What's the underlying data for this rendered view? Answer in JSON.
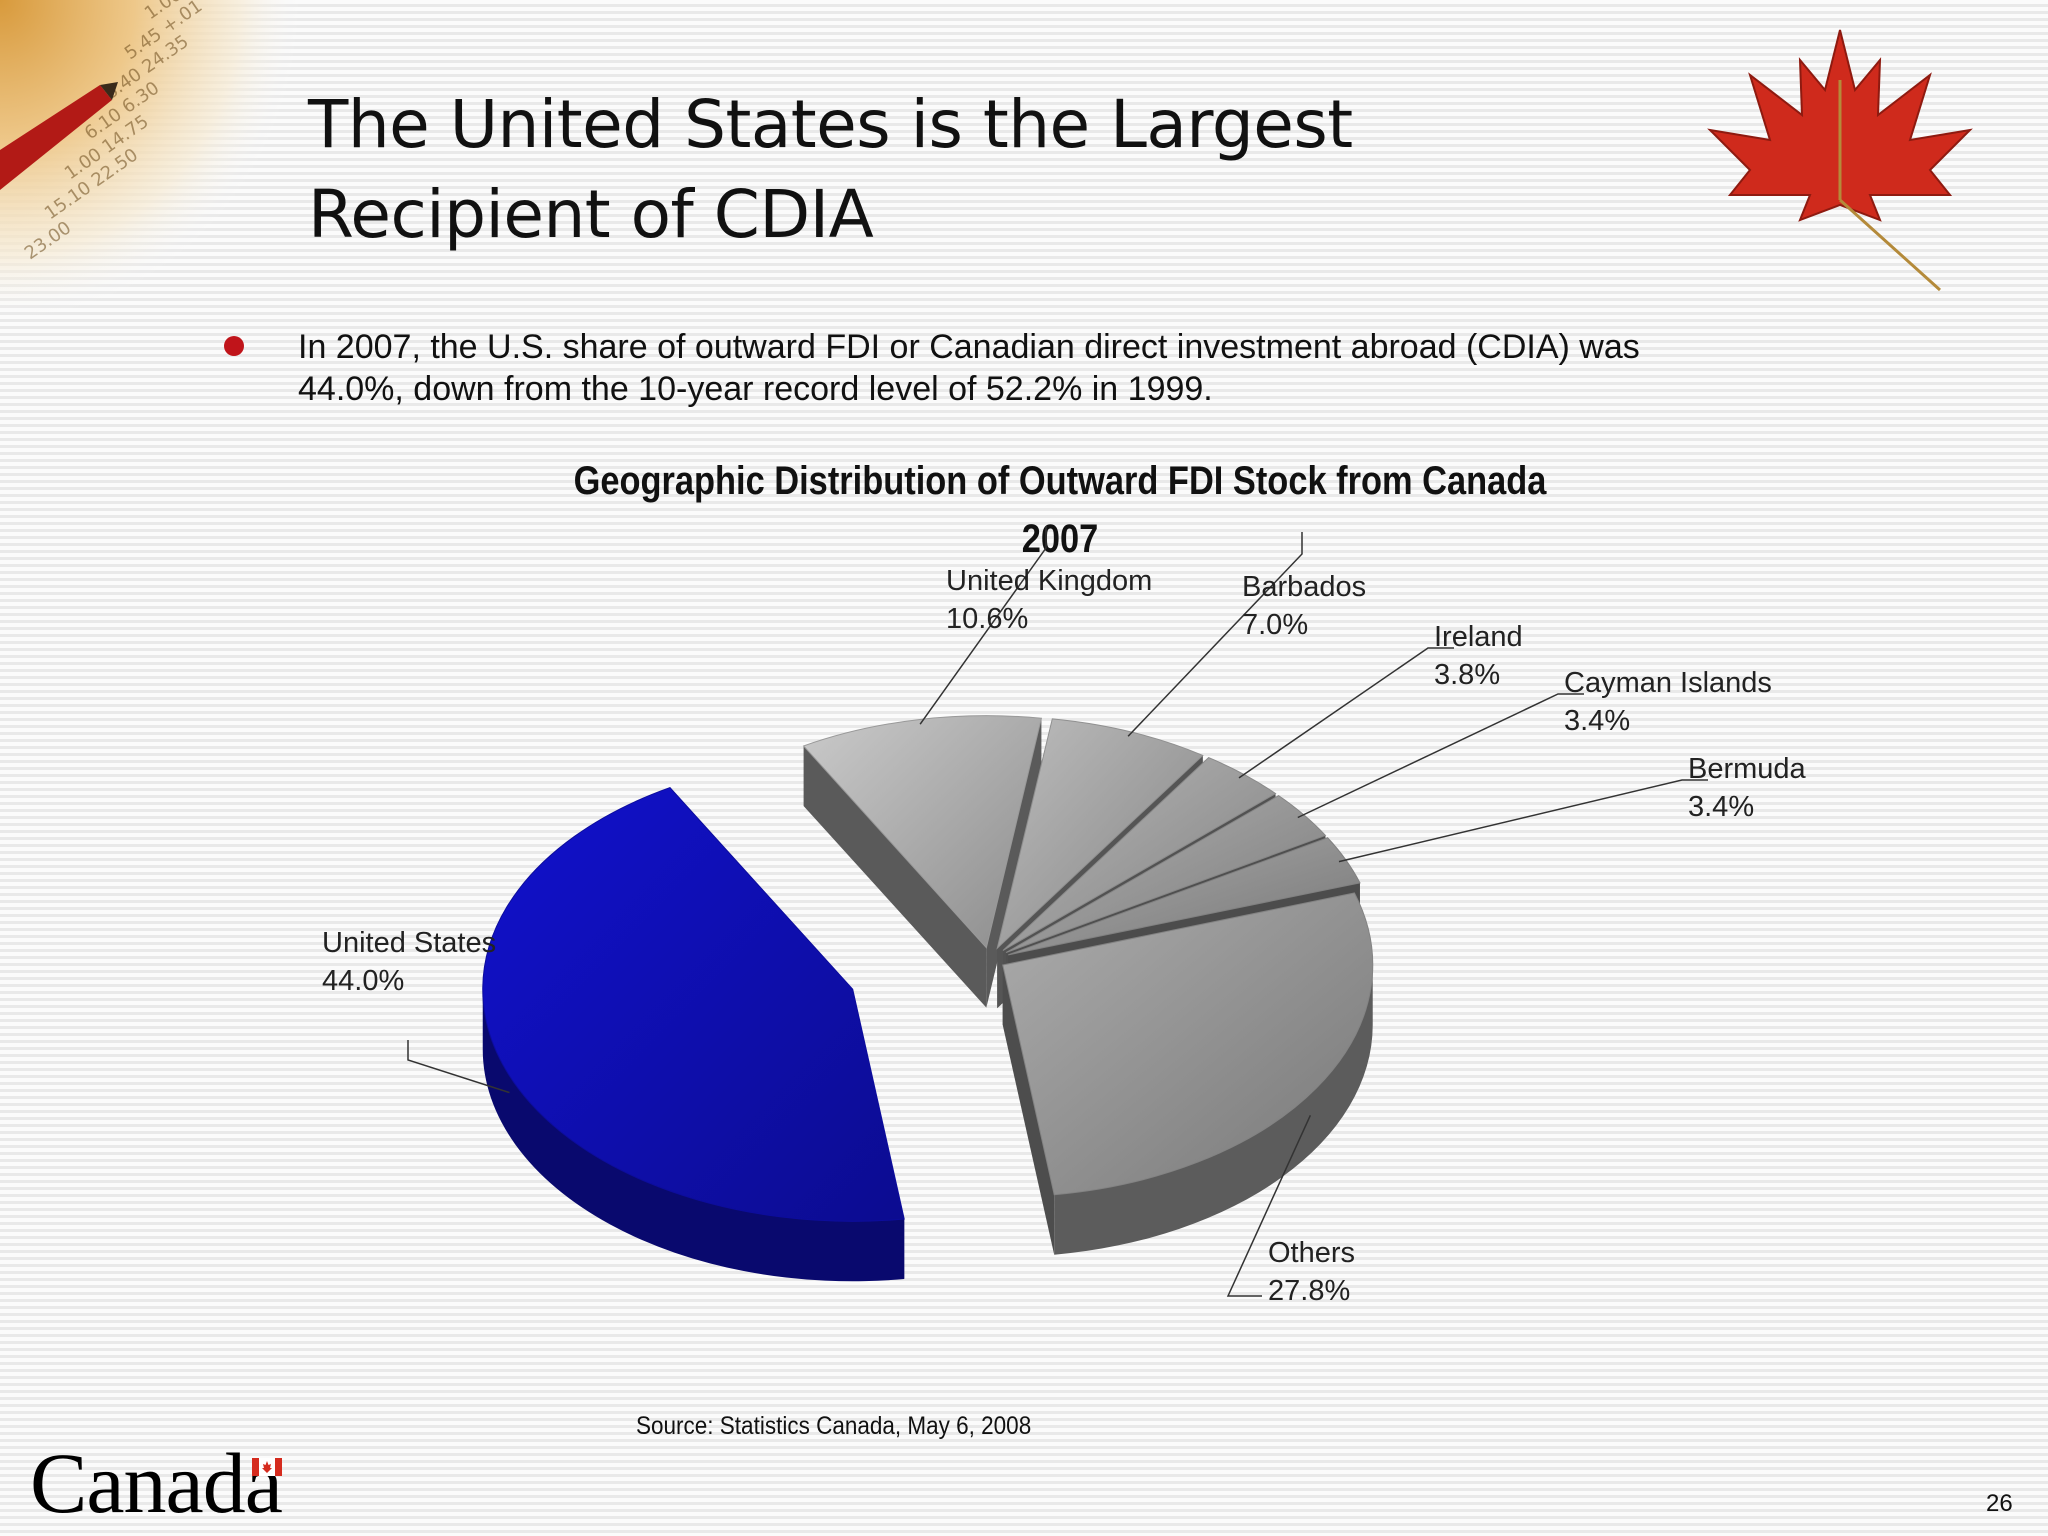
{
  "slide": {
    "title_line1": "The United States is the Largest",
    "title_line2": "Recipient of CDIA",
    "bullet_line1": "In 2007, the U.S. share of outward FDI or Canadian direct investment abroad (CDIA) was",
    "bullet_line2": "44.0%, down from the 10-year record level of 52.2% in 1999.",
    "source": "Source: Statistics Canada, May 6, 2008",
    "wordmark": "Canadä",
    "page_number": "26",
    "bullet_color": "#c0141a",
    "icons": [
      "pen-financial-figures-image",
      "maple-leaf-icon",
      "canada-flag-icon"
    ]
  },
  "chart_data": {
    "type": "pie",
    "title": "Geographic Distribution of Outward FDI Stock from Canada",
    "subtitle": "2007",
    "slices": [
      {
        "name": "United States",
        "value": 44.0,
        "label": "44.0%",
        "color": "#0f0fb8"
      },
      {
        "name": "United Kingdom",
        "value": 10.6,
        "label": "10.6%",
        "color": "#b4b4b4"
      },
      {
        "name": "Barbados",
        "value": 7.0,
        "label": "7.0%",
        "color": "#a9a9a9"
      },
      {
        "name": "Ireland",
        "value": 3.8,
        "label": "3.8%",
        "color": "#a4a4a4"
      },
      {
        "name": "Cayman Islands",
        "value": 3.4,
        "label": "3.4%",
        "color": "#9e9e9e"
      },
      {
        "name": "Bermuda",
        "value": 3.4,
        "label": "3.4%",
        "color": "#989898"
      },
      {
        "name": "Others",
        "value": 27.8,
        "label": "27.8%",
        "color": "#9a9a9a"
      }
    ],
    "style": "3d-exploded"
  }
}
